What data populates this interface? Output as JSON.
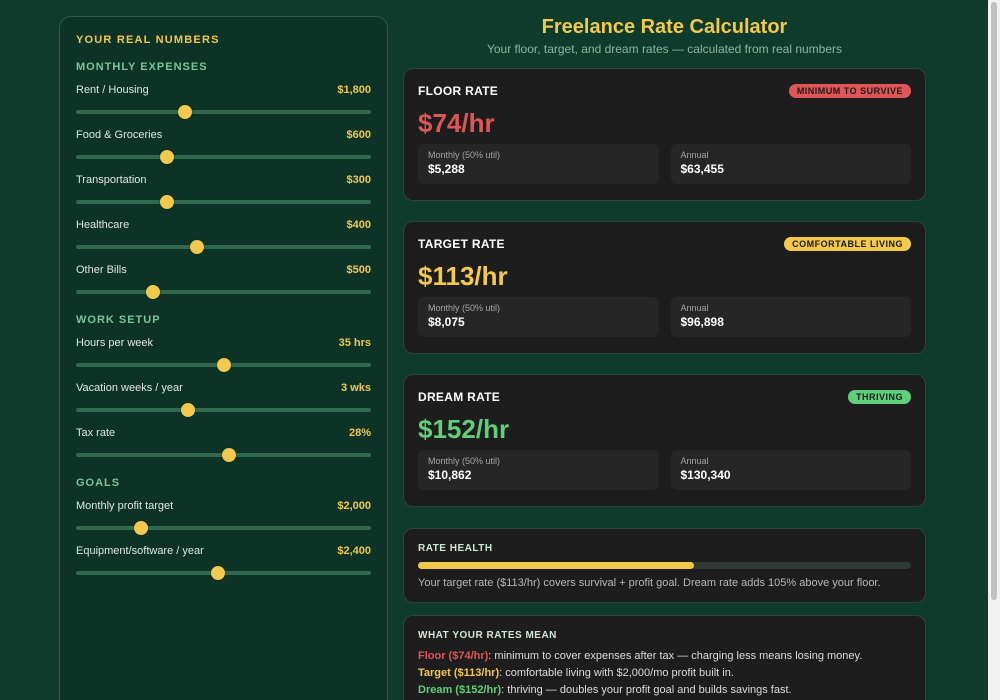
{
  "sidebar": {
    "title": "YOUR REAL NUMBERS",
    "sections": [
      {
        "title": "MONTHLY EXPENSES",
        "sliders": [
          {
            "label": "Rent / Housing",
            "value": "$1,800",
            "level": 0.37
          },
          {
            "label": "Food & Groceries",
            "value": "$600",
            "level": 0.31
          },
          {
            "label": "Transportation",
            "value": "$300",
            "level": 0.31
          },
          {
            "label": "Healthcare",
            "value": "$400",
            "level": 0.41
          },
          {
            "label": "Other Bills",
            "value": "$500",
            "level": 0.26
          }
        ]
      },
      {
        "title": "WORK SETUP",
        "sliders": [
          {
            "label": "Hours per week",
            "value": "35 hrs",
            "level": 0.5
          },
          {
            "label": "Vacation weeks / year",
            "value": "3 wks",
            "level": 0.38
          },
          {
            "label": "Tax rate",
            "value": "28%",
            "level": 0.52
          }
        ]
      },
      {
        "title": "GOALS",
        "sliders": [
          {
            "label": "Monthly profit target",
            "value": "$2,000",
            "level": 0.22
          },
          {
            "label": "Equipment/software / year",
            "value": "$2,400",
            "level": 0.48
          }
        ]
      }
    ]
  },
  "header": {
    "title": "Freelance Rate Calculator",
    "subtitle": "Your floor, target, and dream rates — calculated from real numbers"
  },
  "cards": [
    {
      "title": "FLOOR RATE",
      "badge": "MINIMUM TO SURVIVE",
      "badge_color": "#e05656",
      "rate": "$74/hr",
      "rate_color": "#e05656",
      "monthly_label": "Monthly (50% util)",
      "monthly": "$5,288",
      "annual_label": "Annual",
      "annual": "$63,455"
    },
    {
      "title": "TARGET RATE",
      "badge": "COMFORTABLE LIVING",
      "badge_color": "#f2c94c",
      "rate": "$113/hr",
      "rate_color": "#f2c94c",
      "monthly_label": "Monthly (50% util)",
      "monthly": "$8,075",
      "annual_label": "Annual",
      "annual": "$96,898"
    },
    {
      "title": "DREAM RATE",
      "badge": "THRIVING",
      "badge_color": "#5fd07a",
      "rate": "$152/hr",
      "rate_color": "#5fd07a",
      "monthly_label": "Monthly (50% util)",
      "monthly": "$10,862",
      "annual_label": "Annual",
      "annual": "$130,340"
    }
  ],
  "health": {
    "title": "RATE HEALTH",
    "level": 0.56,
    "text": "Your target rate ($113/hr) covers survival + profit goal. Dream rate adds 105% above your floor."
  },
  "meaning": {
    "title": "WHAT YOUR RATES MEAN",
    "lines": [
      {
        "key": "Floor ($74/hr)",
        "rest": ": minimum to cover expenses after tax — charging less means losing money.",
        "color": "#e05656"
      },
      {
        "key": "Target ($113/hr)",
        "rest": ": comfortable living with $2,000/mo profit built in.",
        "color": "#f2c94c"
      },
      {
        "key": "Dream ($152/hr)",
        "rest": ": thriving — doubles your profit goal and builds savings fast.",
        "color": "#5fd07a"
      }
    ]
  },
  "colors": {
    "accent": "#f2c94c",
    "danger": "#e05656",
    "success": "#5fd07a",
    "background": "#0e3b2c"
  }
}
